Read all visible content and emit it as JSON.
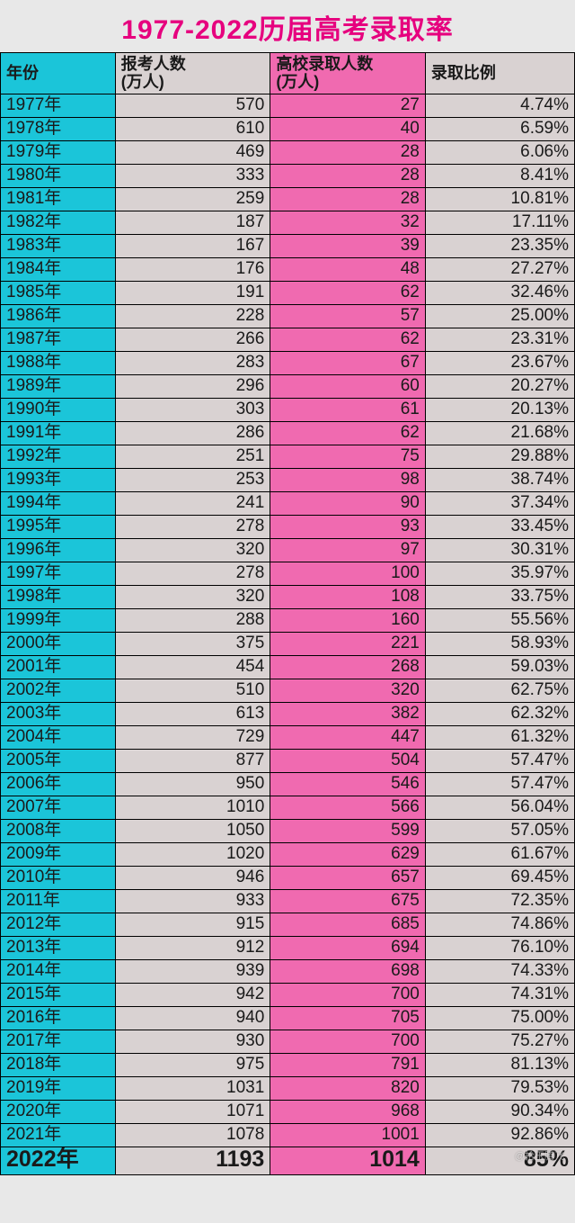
{
  "title": "1977-2022历届高考录取率",
  "title_color": "#e6007e",
  "title_fontsize": 30,
  "columns": [
    "年份",
    "报考人数\n(万人)",
    "高校录取人数\n(万人)",
    "录取比例"
  ],
  "col_widths_pct": [
    20,
    27,
    27,
    26
  ],
  "header_fontsize": 18,
  "cell_fontsize": 19,
  "last_row_fontsize": 25,
  "colors": {
    "col_year_bg": "#1bc5d9",
    "col_apply_bg": "#d9d2d2",
    "col_admit_bg": "#f06ab0",
    "col_rate_bg": "#d9d2d2",
    "border": "#000000",
    "text": "#1a1a1a"
  },
  "rows": [
    [
      "1977年",
      "570",
      "27",
      "4.74%"
    ],
    [
      "1978年",
      "610",
      "40",
      "6.59%"
    ],
    [
      "1979年",
      "469",
      "28",
      "6.06%"
    ],
    [
      "1980年",
      "333",
      "28",
      "8.41%"
    ],
    [
      "1981年",
      "259",
      "28",
      "10.81%"
    ],
    [
      "1982年",
      "187",
      "32",
      "17.11%"
    ],
    [
      "1983年",
      "167",
      "39",
      "23.35%"
    ],
    [
      "1984年",
      "176",
      "48",
      "27.27%"
    ],
    [
      "1985年",
      "191",
      "62",
      "32.46%"
    ],
    [
      "1986年",
      "228",
      "57",
      "25.00%"
    ],
    [
      "1987年",
      "266",
      "62",
      "23.31%"
    ],
    [
      "1988年",
      "283",
      "67",
      "23.67%"
    ],
    [
      "1989年",
      "296",
      "60",
      "20.27%"
    ],
    [
      "1990年",
      "303",
      "61",
      "20.13%"
    ],
    [
      "1991年",
      "286",
      "62",
      "21.68%"
    ],
    [
      "1992年",
      "251",
      "75",
      "29.88%"
    ],
    [
      "1993年",
      "253",
      "98",
      "38.74%"
    ],
    [
      "1994年",
      "241",
      "90",
      "37.34%"
    ],
    [
      "1995年",
      "278",
      "93",
      "33.45%"
    ],
    [
      "1996年",
      "320",
      "97",
      "30.31%"
    ],
    [
      "1997年",
      "278",
      "100",
      "35.97%"
    ],
    [
      "1998年",
      "320",
      "108",
      "33.75%"
    ],
    [
      "1999年",
      "288",
      "160",
      "55.56%"
    ],
    [
      "2000年",
      "375",
      "221",
      "58.93%"
    ],
    [
      "2001年",
      "454",
      "268",
      "59.03%"
    ],
    [
      "2002年",
      "510",
      "320",
      "62.75%"
    ],
    [
      "2003年",
      "613",
      "382",
      "62.32%"
    ],
    [
      "2004年",
      "729",
      "447",
      "61.32%"
    ],
    [
      "2005年",
      "877",
      "504",
      "57.47%"
    ],
    [
      "2006年",
      "950",
      "546",
      "57.47%"
    ],
    [
      "2007年",
      "1010",
      "566",
      "56.04%"
    ],
    [
      "2008年",
      "1050",
      "599",
      "57.05%"
    ],
    [
      "2009年",
      "1020",
      "629",
      "61.67%"
    ],
    [
      "2010年",
      "946",
      "657",
      "69.45%"
    ],
    [
      "2011年",
      "933",
      "675",
      "72.35%"
    ],
    [
      "2012年",
      "915",
      "685",
      "74.86%"
    ],
    [
      "2013年",
      "912",
      "694",
      "76.10%"
    ],
    [
      "2014年",
      "939",
      "698",
      "74.33%"
    ],
    [
      "2015年",
      "942",
      "700",
      "74.31%"
    ],
    [
      "2016年",
      "940",
      "705",
      "75.00%"
    ],
    [
      "2017年",
      "930",
      "700",
      "75.27%"
    ],
    [
      "2018年",
      "975",
      "791",
      "81.13%"
    ],
    [
      "2019年",
      "1031",
      "820",
      "79.53%"
    ],
    [
      "2020年",
      "1071",
      "968",
      "90.34%"
    ],
    [
      "2021年",
      "1078",
      "1001",
      "92.86%"
    ],
    [
      "2022年",
      "1193",
      "1014",
      "85%"
    ]
  ],
  "watermark": "@拾玉腾飞"
}
